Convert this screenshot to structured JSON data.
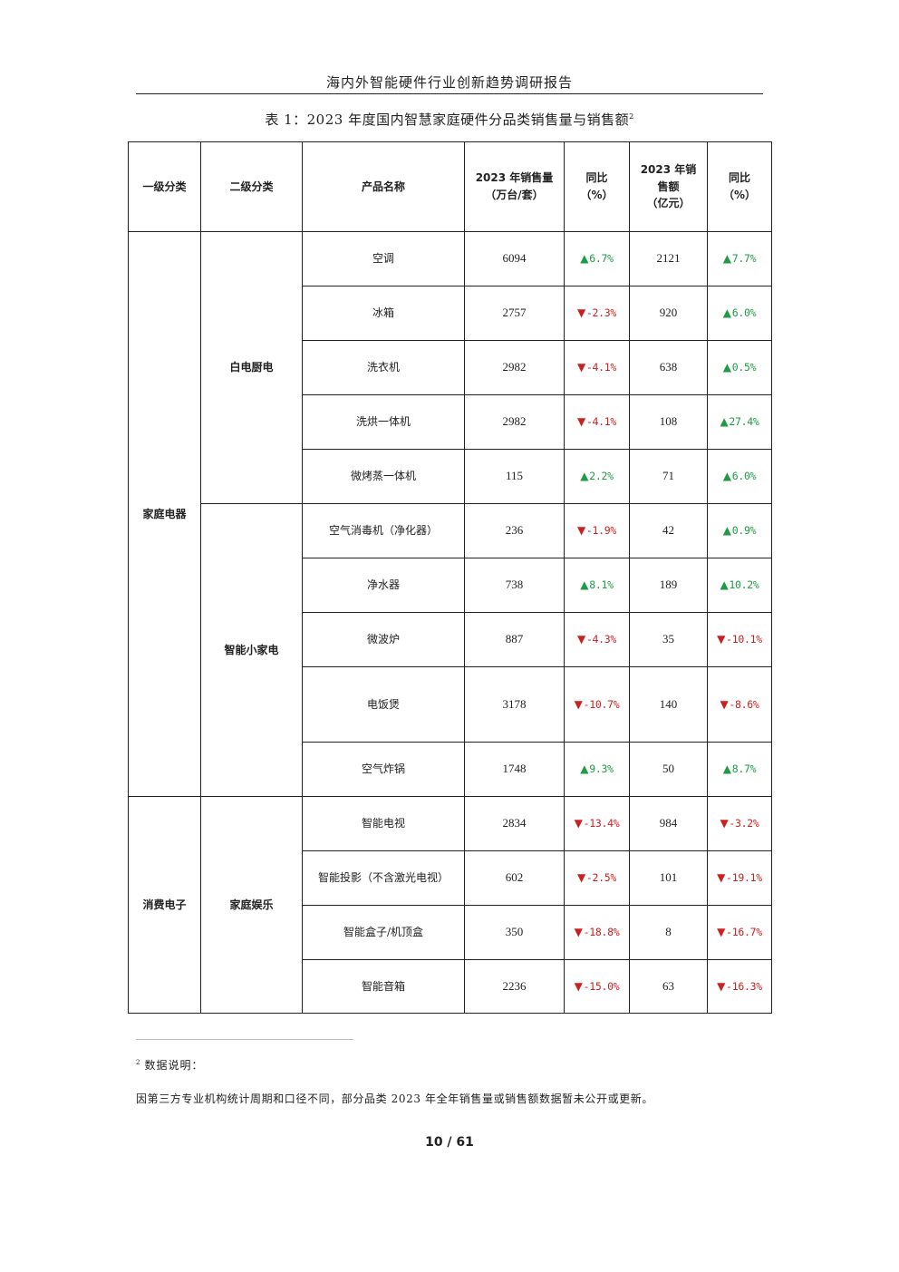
{
  "header": {
    "title": "海内外智能硬件行业创新趋势调研报告"
  },
  "caption": {
    "text": "表 1：2023 年度国内智慧家庭硬件分品类销售量与销售额",
    "footnote_ref": "2"
  },
  "table": {
    "headers": {
      "level1": "一级分类",
      "level2": "二级分类",
      "product": "产品名称",
      "volume_l1": "2023 年销售量",
      "volume_l2": "（万台/套）",
      "vol_yoy_l1": "同比",
      "vol_yoy_l2": "（%）",
      "revenue_l1": "2023 年销",
      "revenue_l2": "售额",
      "revenue_l3": "（亿元）",
      "rev_yoy_l1": "同比",
      "rev_yoy_l2": "（%）"
    },
    "groups": {
      "home_appliances": "家庭电器",
      "white_goods": "白电厨电",
      "small_appliances": "智能小家电",
      "consumer_electronics": "消费电子",
      "home_entertainment": "家庭娱乐"
    },
    "rows": [
      {
        "product": "空调",
        "volume": "6094",
        "vol_dir": "up",
        "vol_yoy": "6.7%",
        "revenue": "2121",
        "rev_dir": "up",
        "rev_yoy": "7.7%"
      },
      {
        "product": "冰箱",
        "volume": "2757",
        "vol_dir": "down",
        "vol_yoy": "-2.3%",
        "revenue": "920",
        "rev_dir": "up",
        "rev_yoy": "6.0%"
      },
      {
        "product": "洗衣机",
        "volume": "2982",
        "vol_dir": "down",
        "vol_yoy": "-4.1%",
        "revenue": "638",
        "rev_dir": "up",
        "rev_yoy": "0.5%"
      },
      {
        "product": "洗烘一体机",
        "volume": "2982",
        "vol_dir": "down",
        "vol_yoy": "-4.1%",
        "revenue": "108",
        "rev_dir": "up",
        "rev_yoy": "27.4%"
      },
      {
        "product": "微烤蒸一体机",
        "volume": "115",
        "vol_dir": "up",
        "vol_yoy": "2.2%",
        "revenue": "71",
        "rev_dir": "up",
        "rev_yoy": "6.0%"
      },
      {
        "product": "空气消毒机（净化器）",
        "volume": "236",
        "vol_dir": "down",
        "vol_yoy": "-1.9%",
        "revenue": "42",
        "rev_dir": "up",
        "rev_yoy": "0.9%"
      },
      {
        "product": "净水器",
        "volume": "738",
        "vol_dir": "up",
        "vol_yoy": "8.1%",
        "revenue": "189",
        "rev_dir": "up",
        "rev_yoy": "10.2%"
      },
      {
        "product": "微波炉",
        "volume": "887",
        "vol_dir": "down",
        "vol_yoy": "-4.3%",
        "revenue": "35",
        "rev_dir": "down",
        "rev_yoy": "-10.1%"
      },
      {
        "product": "电饭煲",
        "volume": "3178",
        "vol_dir": "down",
        "vol_yoy": "-10.7%",
        "revenue": "140",
        "rev_dir": "down",
        "rev_yoy": "-8.6%"
      },
      {
        "product": "空气炸锅",
        "volume": "1748",
        "vol_dir": "up",
        "vol_yoy": "9.3%",
        "revenue": "50",
        "rev_dir": "up",
        "rev_yoy": "8.7%"
      },
      {
        "product": "智能电视",
        "volume": "2834",
        "vol_dir": "down",
        "vol_yoy": "-13.4%",
        "revenue": "984",
        "rev_dir": "down",
        "rev_yoy": "-3.2%"
      },
      {
        "product": "智能投影（不含激光电视）",
        "volume": "602",
        "vol_dir": "down",
        "vol_yoy": "-2.5%",
        "revenue": "101",
        "rev_dir": "down",
        "rev_yoy": "-19.1%"
      },
      {
        "product": "智能盒子/机顶盒",
        "volume": "350",
        "vol_dir": "down",
        "vol_yoy": "-18.8%",
        "revenue": "8",
        "rev_dir": "down",
        "rev_yoy": "-16.7%"
      },
      {
        "product": "智能音箱",
        "volume": "2236",
        "vol_dir": "down",
        "vol_yoy": "-15.0%",
        "revenue": "63",
        "rev_dir": "down",
        "rev_yoy": "-16.3%"
      }
    ]
  },
  "footnote": {
    "marker": "2",
    "title": "数据说明：",
    "body": "因第三方专业机构统计周期和口径不同，部分品类 2023 年全年销售量或销售额数据暂未公开或更新。"
  },
  "page": {
    "number": "10 / 61"
  },
  "colors": {
    "up": "#1e9b45",
    "down": "#cc1f1f"
  },
  "icons": {
    "up": "triangle-up-icon",
    "down": "triangle-down-icon"
  }
}
